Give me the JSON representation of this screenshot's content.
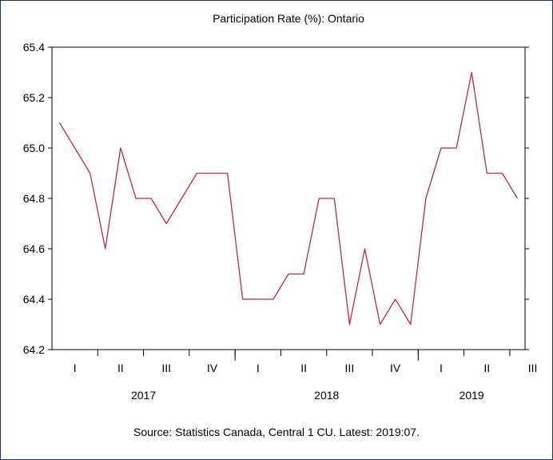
{
  "chart_data": {
    "type": "line",
    "title": "Participation Rate (%): Ontario",
    "source": "Source: Statistics Canada, Central 1 CU. Latest: 2019:07.",
    "line_color": "#c0283c",
    "ylim": [
      64.2,
      65.4
    ],
    "yticks": [
      "64.2",
      "64.4",
      "64.6",
      "64.8",
      "65.0",
      "65.2",
      "65.4"
    ],
    "quarter_labels": [
      "I",
      "II",
      "III",
      "IV",
      "I",
      "II",
      "III",
      "IV",
      "I",
      "II",
      "III"
    ],
    "year_labels": [
      "2017",
      "2018",
      "2019"
    ],
    "x": [
      "2017-01",
      "2017-02",
      "2017-03",
      "2017-04",
      "2017-05",
      "2017-06",
      "2017-07",
      "2017-08",
      "2017-09",
      "2017-10",
      "2017-11",
      "2017-12",
      "2018-01",
      "2018-02",
      "2018-03",
      "2018-04",
      "2018-05",
      "2018-06",
      "2018-07",
      "2018-08",
      "2018-09",
      "2018-10",
      "2018-11",
      "2018-12",
      "2019-01",
      "2019-02",
      "2019-03",
      "2019-04",
      "2019-05",
      "2019-06",
      "2019-07"
    ],
    "values": [
      65.1,
      65.0,
      64.9,
      64.6,
      65.0,
      64.8,
      64.8,
      64.7,
      64.8,
      64.9,
      64.9,
      64.9,
      64.4,
      64.4,
      64.4,
      64.5,
      64.5,
      64.8,
      64.8,
      64.3,
      64.6,
      64.3,
      64.4,
      64.3,
      64.8,
      65.0,
      65.0,
      65.3,
      64.9,
      64.9,
      64.8
    ]
  }
}
